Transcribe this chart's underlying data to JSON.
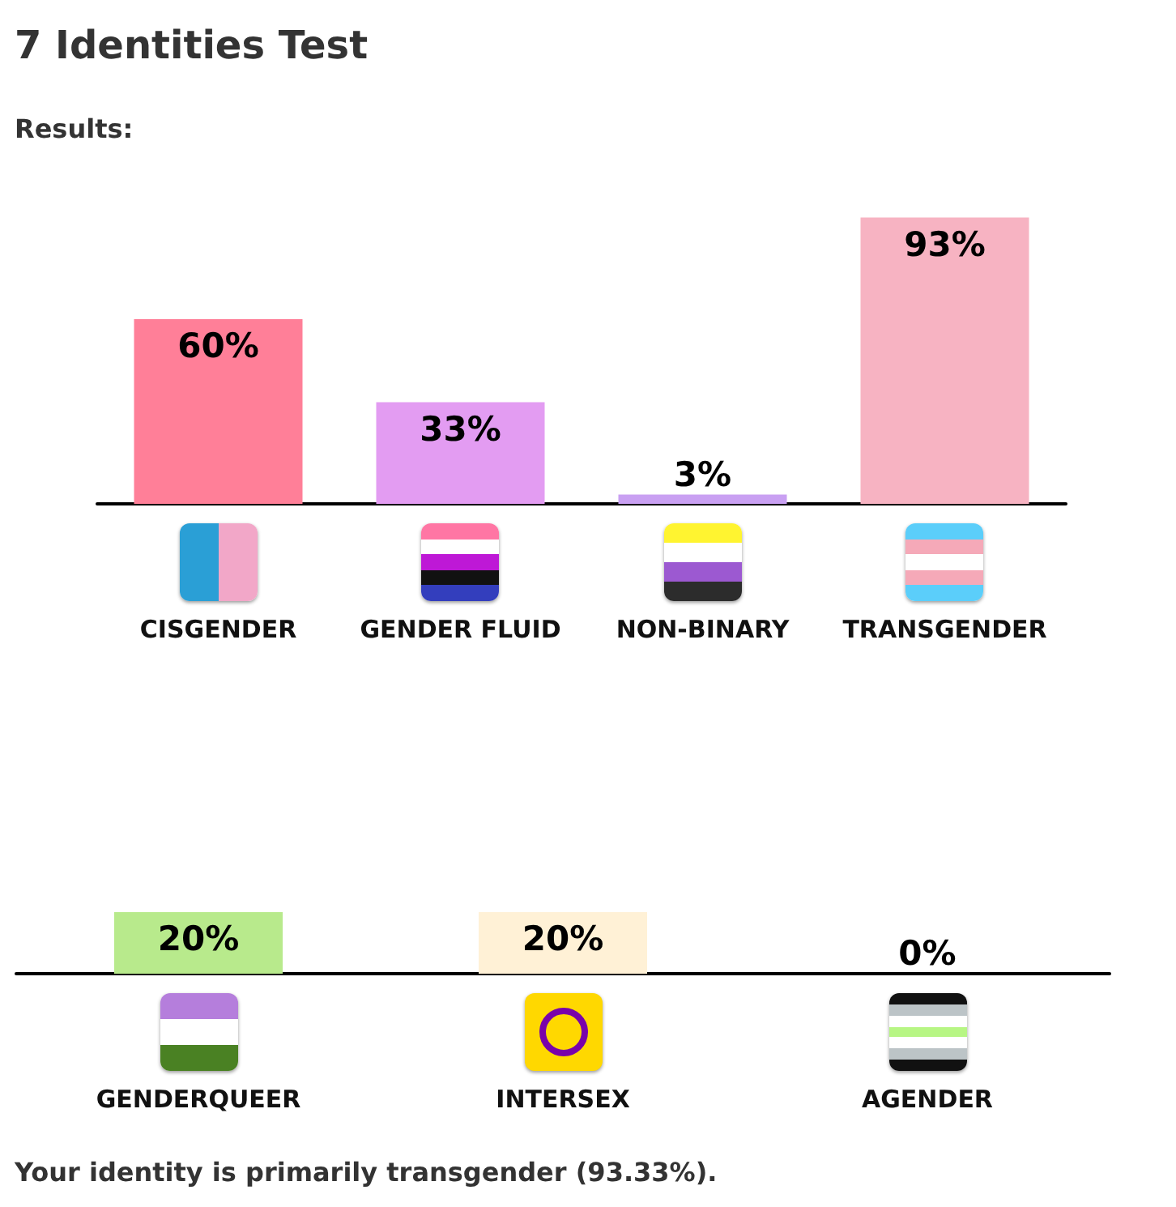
{
  "chart_data": [
    {
      "type": "bar",
      "title": "7 Identities Test",
      "subtitle": "Results:",
      "categories": [
        "CISGENDER",
        "GENDER FLUID",
        "NON-BINARY",
        "TRANSGENDER"
      ],
      "values": [
        60,
        33,
        3,
        93
      ],
      "value_labels": [
        "60%",
        "33%",
        "3%",
        "93%"
      ],
      "colors": [
        "#ff7f98",
        "#e39cf2",
        "#c9a0f2",
        "#f7b3c2"
      ],
      "tick_labels": "x"
    },
    {
      "type": "bar",
      "categories": [
        "GENDERQUEER",
        "INTERSEX",
        "AGENDER"
      ],
      "values": [
        20,
        20,
        0
      ],
      "value_labels": [
        "20%",
        "20%",
        "0%"
      ],
      "colors": [
        "#b8ea8c",
        "#fff1d6",
        "#cccccc"
      ],
      "tick_labels": "x",
      "annotations": [
        "Your identity is primarily transgender (93.33%)."
      ]
    }
  ]
}
